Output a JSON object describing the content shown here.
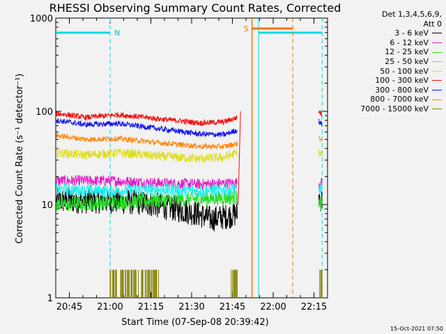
{
  "chart_data": {
    "type": "line",
    "title": "RHESSI Observing Summary Count Rates, Corrected",
    "xlabel": "Start Time (07-Sep-08 20:39:42)",
    "ylabel": "Corrected Count Rate (s⁻¹ detector⁻¹)",
    "yscale": "log",
    "ylim": [
      1,
      1000
    ],
    "xlim_minutes": [
      20.667,
      21.333
    ],
    "xticks": [
      "20:45",
      "21:00",
      "21:15",
      "21:30",
      "21:45",
      "22:00",
      "22:15"
    ],
    "yticks": [
      "1",
      "10",
      "100",
      "1000"
    ],
    "legend_header": "Det 1,3,4,5,6,9,\nAtt 0",
    "legend_position": "right",
    "series": [
      {
        "name": "3 - 6 keV",
        "color": "#000000",
        "segments": [
          {
            "t": [
              20.67,
              20.8,
              21.0,
              21.2,
              21.33,
              21.53,
              21.62,
              21.72,
              21.78
            ],
            "y": [
              11,
              11,
              11,
              10.5,
              9.5,
              8,
              7,
              7.5,
              8
            ]
          },
          {
            "t": [
              22.28,
              22.3
            ],
            "y": [
              12,
              11
            ]
          }
        ]
      },
      {
        "name": "6 - 12 keV",
        "color": "#e21cc8",
        "segments": [
          {
            "t": [
              20.67,
              21.0,
              21.3,
              21.55,
              21.78
            ],
            "y": [
              18,
              18,
              17,
              16.5,
              17
            ]
          },
          {
            "t": [
              22.28,
              22.3
            ],
            "y": [
              17,
              17
            ]
          }
        ]
      },
      {
        "name": "12 - 25 keV",
        "color": "#22dd22",
        "segments": [
          {
            "t": [
              20.67,
              21.0,
              21.25,
              21.55,
              21.78
            ],
            "y": [
              10,
              10.5,
              11,
              11.5,
              12
            ]
          },
          {
            "t": [
              22.28,
              22.3
            ],
            "y": [
              10.5,
              10
            ]
          }
        ]
      },
      {
        "name": "25 - 50 keV",
        "color": "#22eeee",
        "segments": [
          {
            "t": [
              20.67,
              21.0,
              21.3,
              21.55,
              21.78
            ],
            "y": [
              14.5,
              14,
              14.5,
              14,
              14.5
            ]
          },
          {
            "t": [
              22.28,
              22.3
            ],
            "y": [
              15,
              14
            ]
          }
        ]
      },
      {
        "name": "50 - 100 keV",
        "color": "#dede22",
        "segments": [
          {
            "t": [
              20.67,
              20.85,
              21.05,
              21.3,
              21.55,
              21.7,
              21.78
            ],
            "y": [
              36,
              34,
              36,
              33,
              31,
              32,
              36
            ]
          },
          {
            "t": [
              22.28,
              22.3
            ],
            "y": [
              36,
              34
            ]
          }
        ]
      },
      {
        "name": "100 - 300 keV",
        "color": "#ee1111",
        "segments": [
          {
            "t": [
              20.67,
              20.85,
              21.05,
              21.3,
              21.55,
              21.7,
              21.78
            ],
            "y": [
              95,
              86,
              92,
              83,
              75,
              77,
              86
            ]
          },
          {
            "t": [
              22.28,
              22.3
            ],
            "y": [
              100,
              93
            ]
          }
        ]
      },
      {
        "name": "300 - 800 keV",
        "color": "#1111ee",
        "segments": [
          {
            "t": [
              20.67,
              20.85,
              21.05,
              21.3,
              21.55,
              21.7,
              21.78
            ],
            "y": [
              80,
              72,
              74,
              65,
              57,
              56,
              63
            ]
          },
          {
            "t": [
              22.28,
              22.3
            ],
            "y": [
              78,
              72
            ]
          }
        ]
      },
      {
        "name": "800 - 7000 keV",
        "color": "#ff8811",
        "segments": [
          {
            "t": [
              20.67,
              20.85,
              21.05,
              21.3,
              21.55,
              21.7,
              21.78
            ],
            "y": [
              55,
              50,
              51,
              46,
              42,
              42,
              45
            ]
          },
          {
            "t": [
              22.28,
              22.3
            ],
            "y": [
              53,
              48
            ]
          }
        ]
      },
      {
        "name": "7000 - 15000 keV",
        "color": "#808000",
        "segments": []
      }
    ],
    "annotations": [
      {
        "label": "N",
        "t_start": 20.667,
        "t_end": 21.0
      },
      {
        "label": "S",
        "t_start": 21.87,
        "t_end": 22.12
      }
    ],
    "timestamp": "15-Oct-2021 07:50"
  }
}
